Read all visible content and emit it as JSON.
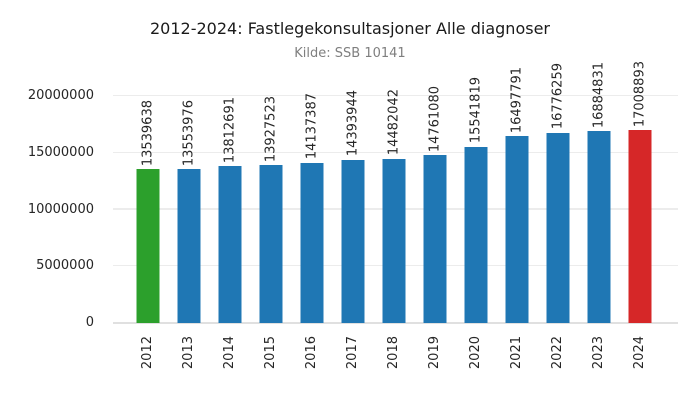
{
  "title": "2012-2024: Fastlegekonsultasjoner Alle diagnoser",
  "subtitle": "Kilde: SSB 10141",
  "chart_data": {
    "type": "bar",
    "title": "2012-2024: Fastlegekonsultasjoner Alle diagnoser",
    "subtitle": "Kilde: SSB 10141",
    "categories": [
      "2012",
      "2013",
      "2014",
      "2015",
      "2016",
      "2017",
      "2018",
      "2019",
      "2020",
      "2021",
      "2022",
      "2023",
      "2024"
    ],
    "values": [
      13539638,
      13553976,
      13812691,
      13927523,
      14137387,
      14393944,
      14482042,
      14761080,
      15541819,
      16497791,
      16776259,
      16884831,
      17008893
    ],
    "bar_colors": [
      "#2ca02c",
      "#1f77b4",
      "#1f77b4",
      "#1f77b4",
      "#1f77b4",
      "#1f77b4",
      "#1f77b4",
      "#1f77b4",
      "#1f77b4",
      "#1f77b4",
      "#1f77b4",
      "#1f77b4",
      "#d62728"
    ],
    "value_labels": [
      "13539638",
      "13553976",
      "13812691",
      "13927523",
      "14137387",
      "14393944",
      "14482042",
      "14761080",
      "15541819",
      "16497791",
      "16776259",
      "16884831",
      "17008893"
    ],
    "yticks": [
      0,
      5000000,
      10000000,
      15000000,
      20000000
    ],
    "ytick_labels": [
      "0",
      "5000000",
      "10000000",
      "15000000",
      "20000000"
    ],
    "ylim": [
      0,
      20000000
    ],
    "xlabel": "",
    "ylabel": "",
    "grid": "horizontal",
    "legend": false
  },
  "colors": {
    "highlight_first": "#2ca02c",
    "default_bar": "#1f77b4",
    "highlight_last": "#d62728",
    "gridline": "#ececec",
    "baseline": "#e0e0e0",
    "tick_text": "#262626",
    "subtitle_text": "#7f7f7f"
  }
}
